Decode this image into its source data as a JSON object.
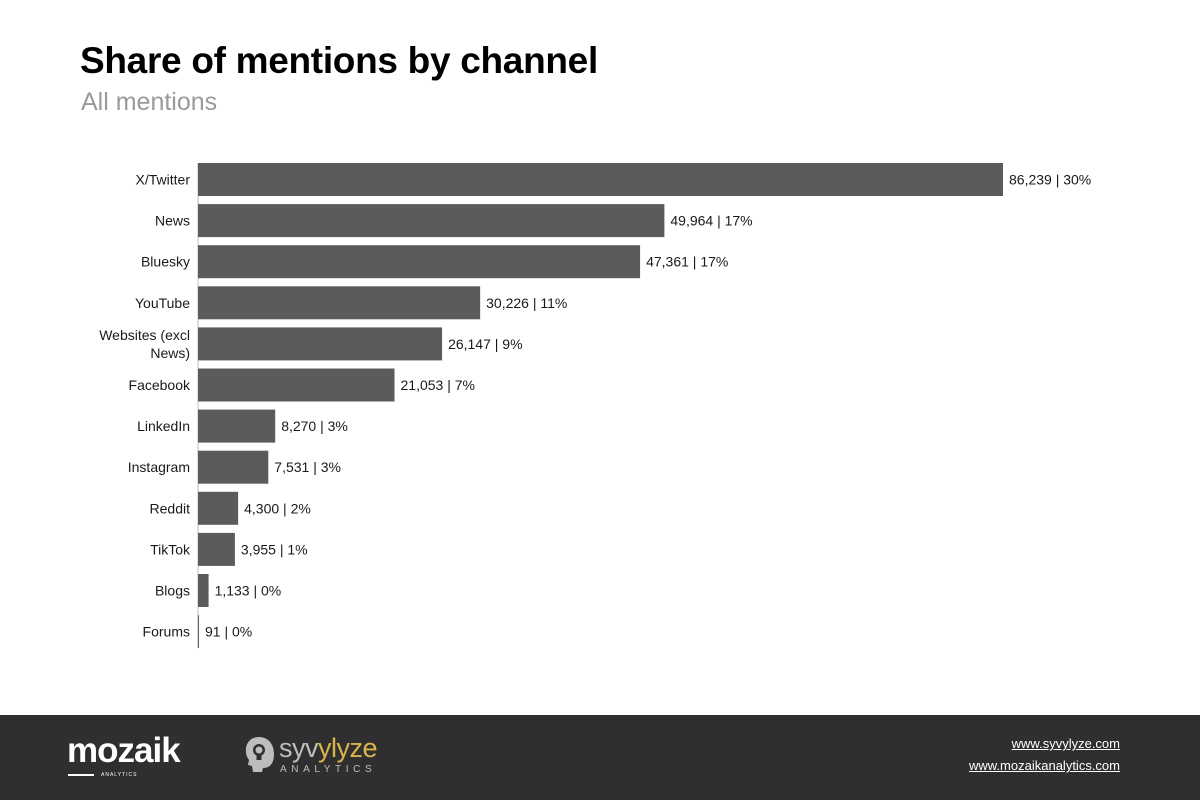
{
  "title": "Share of mentions by channel",
  "subtitle": "All mentions",
  "colors": {
    "bar": "#5b5b5b",
    "text": "#1a1a1a",
    "footer_bg": "#2f2f2f",
    "subtitle": "#9a9a9a",
    "syvylyze_accent": "#d9b64a"
  },
  "chart_data": {
    "type": "bar",
    "orientation": "horizontal",
    "categories": [
      "X/Twitter",
      "News",
      "Bluesky",
      "YouTube",
      "Websites (excl News)",
      "Facebook",
      "LinkedIn",
      "Instagram",
      "Reddit",
      "TikTok",
      "Blogs",
      "Forums"
    ],
    "values": [
      86239,
      49964,
      47361,
      30226,
      26147,
      21053,
      8270,
      7531,
      4300,
      3955,
      1133,
      91
    ],
    "data_labels": [
      "86,239 | 30%",
      "49,964 | 17%",
      "47,361 | 17%",
      "30,226 | 11%",
      "26,147 | 9%",
      "21,053 | 7%",
      "8,270 | 3%",
      "7,531 | 3%",
      "4,300 | 2%",
      "3,955 | 1%",
      "1,133 | 0%",
      "91 | 0%"
    ],
    "xlim": [
      0,
      86239
    ],
    "grid": false,
    "legend": "none"
  },
  "footer": {
    "logos": {
      "mozaik": "mozaik",
      "mozaik_sub": "ANALYTICS",
      "syvylyze_prefix": "syv",
      "syvylyze_accent_text": "ylyze",
      "syvylyze_sub": "ANALYTICS"
    },
    "links": [
      "www.syvylyze.com",
      "www.mozaikanalytics.com"
    ]
  }
}
